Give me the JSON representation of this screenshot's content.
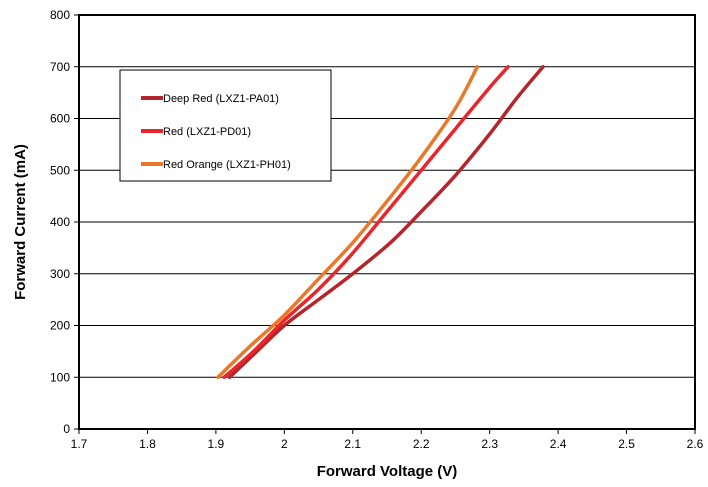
{
  "chart_data": {
    "type": "line",
    "title": "",
    "xlabel": "Forward Voltage (V)",
    "ylabel": "Forward Current (mA)",
    "xlim": [
      1.7,
      2.6
    ],
    "ylim": [
      0,
      800
    ],
    "x_ticks": [
      "1.7",
      "1.8",
      "1.9",
      "2",
      "2.1",
      "2.2",
      "2.3",
      "2.4",
      "2.5",
      "2.6"
    ],
    "y_ticks": [
      "0",
      "100",
      "200",
      "300",
      "400",
      "500",
      "600",
      "700",
      "800"
    ],
    "grid": "horizontal",
    "legend_position": "top-left",
    "series": [
      {
        "name": "Deep Red (LXZ1-PA01)",
        "color": "#b5262c",
        "points": [
          [
            1.92,
            100
          ],
          [
            1.96,
            150
          ],
          [
            2.0,
            200
          ],
          [
            2.05,
            250
          ],
          [
            2.1,
            300
          ],
          [
            2.155,
            360
          ],
          [
            2.2,
            420
          ],
          [
            2.25,
            490
          ],
          [
            2.3,
            570
          ],
          [
            2.34,
            640
          ],
          [
            2.378,
            700
          ]
        ]
      },
      {
        "name": "Red (LXZ1-PD01)",
        "color": "#e8262c",
        "points": [
          [
            1.912,
            100
          ],
          [
            1.955,
            150
          ],
          [
            2.0,
            210
          ],
          [
            2.05,
            270
          ],
          [
            2.1,
            340
          ],
          [
            2.15,
            420
          ],
          [
            2.2,
            500
          ],
          [
            2.25,
            580
          ],
          [
            2.3,
            660
          ],
          [
            2.327,
            700
          ]
        ]
      },
      {
        "name": "Red Orange (LXZ1-PH01)",
        "color": "#e8792a",
        "points": [
          [
            1.903,
            100
          ],
          [
            1.95,
            160
          ],
          [
            2.0,
            220
          ],
          [
            2.05,
            290
          ],
          [
            2.1,
            360
          ],
          [
            2.15,
            440
          ],
          [
            2.2,
            525
          ],
          [
            2.25,
            620
          ],
          [
            2.282,
            700
          ]
        ]
      }
    ]
  }
}
